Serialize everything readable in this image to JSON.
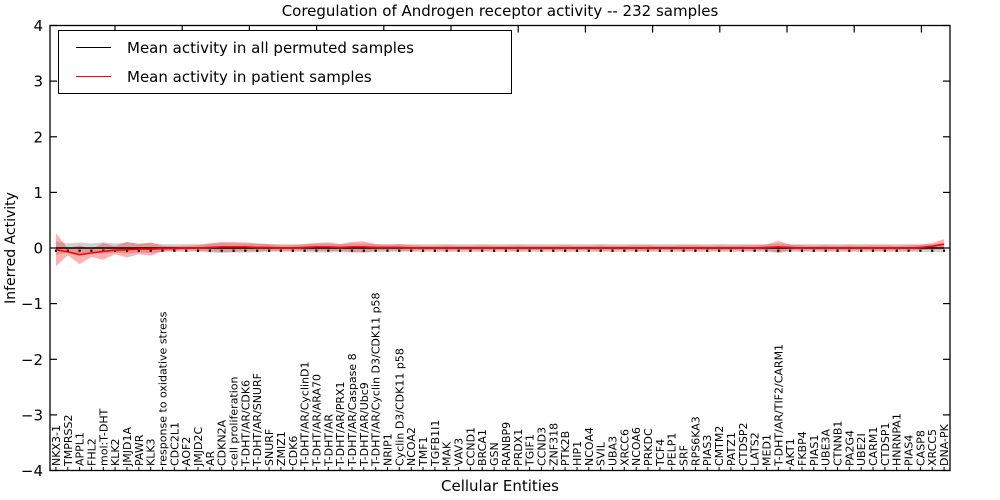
{
  "title": "Coregulation of Androgen receptor activity -- 232 samples",
  "xlabel": "Cellular Entities",
  "ylabel": "Inferred Activity",
  "chart_data": {
    "type": "line",
    "title": "Coregulation of Androgen receptor activity -- 232 samples",
    "xlabel": "Cellular Entities",
    "ylabel": "Inferred Activity",
    "ylim": [
      -4,
      4
    ],
    "yticks": [
      -4,
      -3,
      -2,
      -1,
      0,
      1,
      2,
      3,
      4
    ],
    "grid": false,
    "legend_position": "upper left",
    "n_samples": 232,
    "categories": [
      "NKX3-1",
      "TMPRSS2",
      "APPL1",
      "FHL2",
      "mol:T-DHT",
      "KLK2",
      "JMJD1A",
      "PAWR",
      "KLK3",
      "response to oxidative stress",
      "CDC2L1",
      "AOF2",
      "JMJD2C",
      "AR",
      "CDKN2A",
      "cell proliferation",
      "T-DHT/AR/CDK6",
      "T-DHT/AR/SNURF",
      "SNURF",
      "ZMIZ1",
      "CDK6",
      "T-DHT/AR/CyclinD1",
      "T-DHT/AR/ARA70",
      "T-DHT/AR",
      "T-DHT/AR/PRX1",
      "T-DHT/AR/Caspase 8",
      "T-DHT/AR/Ubc9",
      "T-DHT/AR/Cyclin D3/CDK11 p58",
      "NRIP1",
      "Cyclin D3/CDK11 p58",
      "NCOA2",
      "TMF1",
      "TGFB1I1",
      "MAK",
      "VAV3",
      "CCND1",
      "BRCA1",
      "GSN",
      "RANBP9",
      "PRDX1",
      "TGIF1",
      "CCND3",
      "ZNF318",
      "PTK2B",
      "HIP1",
      "NCOA4",
      "SVIL",
      "UBA3",
      "XRCC6",
      "NCOA6",
      "PRKDC",
      "TCF4",
      "PELP1",
      "SRF",
      "RPS6KA3",
      "PIAS3",
      "CMTM2",
      "PATZ1",
      "CTDSP2",
      "LATS2",
      "MED1",
      "T-DHT/AR/TIF2/CARM1",
      "AKT1",
      "FKBP4",
      "PIAS1",
      "UBE3A",
      "CTNNB1",
      "PA2G4",
      "UBE2I",
      "CARM1",
      "CTDSP1",
      "HNRNPA1",
      "PIAS4",
      "CASP8",
      "XRCC5",
      "DNA-PK"
    ],
    "series": [
      {
        "name": "Mean activity in all permuted samples",
        "color": "#000000",
        "band_color": "#999999",
        "band_opacity": 0.45,
        "markers": true,
        "values": [
          0,
          0,
          0,
          0,
          0,
          0,
          0,
          0,
          0,
          0,
          0,
          0,
          0,
          0,
          0,
          0,
          0,
          0,
          0,
          0,
          0,
          0,
          0,
          0,
          0,
          0,
          0,
          0,
          0,
          0,
          0,
          0,
          0,
          0,
          0,
          0,
          0,
          0,
          0,
          0,
          0,
          0,
          0,
          0,
          0,
          0,
          0,
          0,
          0,
          0,
          0,
          0,
          0,
          0,
          0,
          0,
          0,
          0,
          0,
          0,
          0,
          0,
          0,
          0,
          0,
          0,
          0,
          0,
          0,
          0,
          0,
          0,
          0,
          0,
          0,
          0
        ],
        "band_halfwidth": [
          0.12,
          0.08,
          0.1,
          0.08,
          0.1,
          0.08,
          0.1,
          0.08,
          0.09,
          0.07,
          0.07,
          0.07,
          0.07,
          0.08,
          0.09,
          0.08,
          0.08,
          0.08,
          0.07,
          0.07,
          0.07,
          0.07,
          0.08,
          0.08,
          0.07,
          0.08,
          0.08,
          0.07,
          0.07,
          0.07,
          0.07,
          0.07,
          0.07,
          0.07,
          0.07,
          0.07,
          0.07,
          0.07,
          0.07,
          0.07,
          0.07,
          0.07,
          0.07,
          0.07,
          0.07,
          0.07,
          0.07,
          0.07,
          0.07,
          0.07,
          0.07,
          0.07,
          0.07,
          0.07,
          0.07,
          0.07,
          0.07,
          0.07,
          0.07,
          0.07,
          0.07,
          0.08,
          0.07,
          0.07,
          0.07,
          0.07,
          0.07,
          0.07,
          0.07,
          0.07,
          0.07,
          0.07,
          0.07,
          0.07,
          0.07,
          0.08
        ]
      },
      {
        "name": "Mean activity in patient samples",
        "color": "#ff0000",
        "band_color": "#ff3333",
        "band_opacity": 0.38,
        "markers": false,
        "values": [
          -0.03,
          -0.07,
          -0.12,
          -0.09,
          -0.06,
          -0.04,
          -0.03,
          -0.02,
          -0.02,
          -0.01,
          -0.01,
          0,
          0,
          0.01,
          0.02,
          0.02,
          0.02,
          0.01,
          0.01,
          0,
          0,
          0.01,
          0.02,
          0.02,
          0.01,
          0.02,
          0.02,
          0.01,
          0.01,
          0.01,
          0,
          0,
          0,
          0,
          0,
          0,
          0,
          0,
          0,
          0,
          0,
          0,
          0,
          0,
          0,
          0,
          0,
          0,
          0,
          0,
          0,
          0,
          0,
          0,
          0,
          0,
          0,
          0,
          0,
          0,
          0.01,
          0.02,
          0.01,
          0,
          0,
          0,
          0,
          0,
          0,
          0,
          0,
          0,
          0,
          0.01,
          0.03,
          0.07
        ],
        "band_halfwidth": [
          0.3,
          0.06,
          0.17,
          0.07,
          0.15,
          0.07,
          0.14,
          0.09,
          0.12,
          0.05,
          0.04,
          0.04,
          0.05,
          0.07,
          0.09,
          0.09,
          0.08,
          0.07,
          0.06,
          0.05,
          0.05,
          0.06,
          0.07,
          0.08,
          0.06,
          0.09,
          0.1,
          0.06,
          0.05,
          0.06,
          0.05,
          0.04,
          0.04,
          0.05,
          0.04,
          0.04,
          0.05,
          0.04,
          0.04,
          0.05,
          0.04,
          0.04,
          0.04,
          0.05,
          0.04,
          0.04,
          0.05,
          0.04,
          0.04,
          0.05,
          0.05,
          0.04,
          0.04,
          0.05,
          0.05,
          0.04,
          0.05,
          0.04,
          0.05,
          0.05,
          0.05,
          0.11,
          0.05,
          0.05,
          0.04,
          0.05,
          0.04,
          0.05,
          0.04,
          0.05,
          0.05,
          0.04,
          0.05,
          0.05,
          0.06,
          0.09
        ]
      }
    ]
  }
}
